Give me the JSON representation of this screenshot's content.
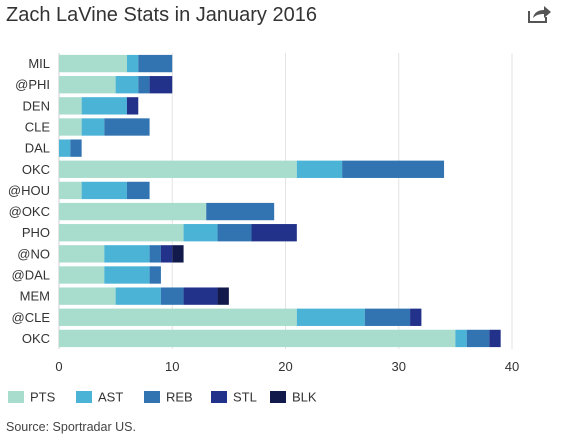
{
  "header": {
    "title": "Zach LaVine Stats in January 2016",
    "share_icon": "share-arrow-icon"
  },
  "footer": {
    "source": "Source: Sportradar US."
  },
  "chart_data": {
    "type": "bar",
    "orientation": "horizontal",
    "stacked": true,
    "title": "Zach LaVine Stats in January 2016",
    "xlabel": "",
    "ylabel": "",
    "xlim": [
      0,
      40
    ],
    "xticks": [
      0,
      10,
      20,
      30,
      40
    ],
    "grid": true,
    "legend_position": "bottom-left",
    "categories": [
      "MIL",
      "@PHI",
      "DEN",
      "CLE",
      "DAL",
      "OKC",
      "@HOU",
      "@OKC",
      "PHO",
      "@NO",
      "@DAL",
      "MEM",
      "@CLE",
      "OKC"
    ],
    "series": [
      {
        "name": "PTS",
        "color": "#a8dccd",
        "values": [
          6,
          5,
          2,
          2,
          0,
          21,
          2,
          13,
          11,
          4,
          4,
          5,
          21,
          35
        ]
      },
      {
        "name": "AST",
        "color": "#4ab3d6",
        "values": [
          1,
          2,
          4,
          2,
          1,
          4,
          4,
          0,
          3,
          4,
          4,
          4,
          6,
          1
        ]
      },
      {
        "name": "REB",
        "color": "#3274b1",
        "values": [
          3,
          1,
          0,
          4,
          1,
          9,
          2,
          6,
          3,
          1,
          1,
          2,
          4,
          2
        ]
      },
      {
        "name": "STL",
        "color": "#22328a",
        "values": [
          0,
          2,
          1,
          0,
          0,
          0,
          0,
          0,
          4,
          1,
          0,
          3,
          1,
          1
        ]
      },
      {
        "name": "BLK",
        "color": "#111a4a",
        "values": [
          0,
          0,
          0,
          0,
          0,
          0,
          0,
          0,
          0,
          1,
          0,
          1,
          0,
          0
        ]
      }
    ]
  }
}
